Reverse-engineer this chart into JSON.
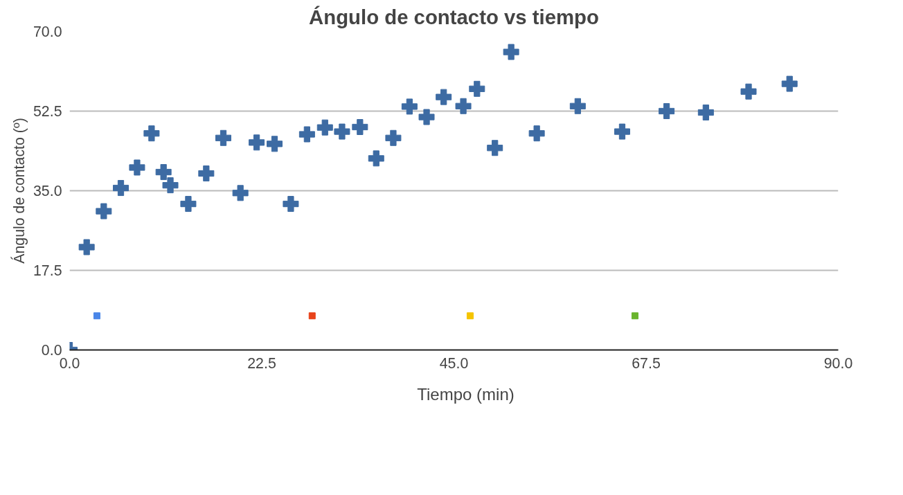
{
  "chart_data": {
    "type": "scatter",
    "title": "Ángulo de contacto vs tiempo",
    "ylabel": "Ángulo de contacto (º)",
    "xlim": [
      0,
      90
    ],
    "ylim": [
      0,
      70
    ],
    "xticks": [
      {
        "value": 0,
        "label": "0.0"
      },
      22.5,
      {
        "value": 45,
        "label": "45.0"
      },
      67.5,
      {
        "value": 90,
        "label": "90.0"
      }
    ],
    "yticks": [
      {
        "value": 0,
        "label": "0.0"
      },
      17.5,
      {
        "value": 35,
        "label": "35.0"
      },
      52.5,
      {
        "value": 70,
        "label": "70.0"
      }
    ],
    "grid": "y",
    "legend": "bottom",
    "marker": "cross",
    "series": [
      {
        "name": "Tiempo (min)",
        "color": "#3d6ba3",
        "x": [
          0,
          2.0,
          4.0,
          6.0,
          7.9,
          9.6,
          11.0,
          11.8,
          13.9,
          16.0,
          18.0,
          20.0,
          21.9,
          24.0,
          25.9,
          27.8,
          29.9,
          31.9,
          34.0,
          35.9,
          37.9,
          39.8,
          41.8,
          43.8,
          46.1,
          47.7,
          49.8,
          51.7,
          54.7,
          59.5,
          64.7,
          69.9,
          74.5,
          79.5,
          84.3
        ],
        "values": [
          0,
          22.6,
          30.5,
          35.6,
          40.1,
          47.6,
          39.1,
          36.2,
          32.1,
          38.8,
          46.6,
          34.5,
          45.6,
          45.3,
          32.1,
          47.4,
          48.9,
          48.0,
          49.0,
          42.1,
          46.6,
          53.5,
          51.2,
          55.6,
          53.6,
          57.4,
          44.4,
          65.5,
          47.6,
          53.6,
          48.0,
          52.5,
          52.2,
          56.8,
          58.5
        ]
      },
      {
        "marker": "square",
        "colors": [
          "#4a86e8",
          "#e8431a",
          "#f5c400",
          "#6ab42d"
        ],
        "x": [
          3.2,
          28.4,
          46.9,
          66.2
        ],
        "values": [
          7.5,
          7.5,
          7.5,
          7.5
        ]
      }
    ]
  }
}
